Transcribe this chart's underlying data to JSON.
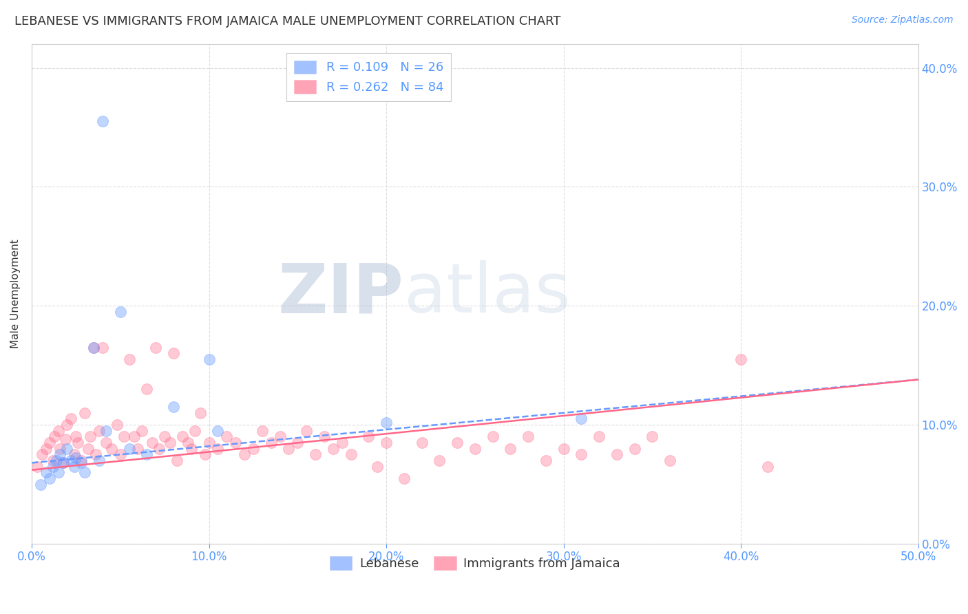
{
  "title": "LEBANESE VS IMMIGRANTS FROM JAMAICA MALE UNEMPLOYMENT CORRELATION CHART",
  "source": "Source: ZipAtlas.com",
  "ylabel": "Male Unemployment",
  "xlim": [
    0.0,
    0.5
  ],
  "ylim": [
    0.0,
    0.42
  ],
  "x_tick_vals": [
    0.0,
    0.1,
    0.2,
    0.3,
    0.4,
    0.5
  ],
  "x_tick_labels": [
    "0.0%",
    "10.0%",
    "20.0%",
    "30.0%",
    "40.0%",
    "50.0%"
  ],
  "y_tick_vals": [
    0.0,
    0.1,
    0.2,
    0.3,
    0.4
  ],
  "y_tick_labels": [
    "0.0%",
    "10.0%",
    "20.0%",
    "30.0%",
    "40.0%"
  ],
  "leb_R": 0.109,
  "leb_N": 26,
  "jam_R": 0.262,
  "jam_N": 84,
  "leb_label": "Lebanese",
  "jam_label": "Immigrants from Jamaica",
  "blue_color": "#6699ff",
  "pink_color": "#ff6688",
  "grid_color": "#dddddd",
  "axis_color": "#cccccc",
  "tick_color": "#5599ff",
  "bg_color": "#ffffff",
  "title_color": "#333333",
  "title_fontsize": 13,
  "source_fontsize": 10,
  "label_fontsize": 11,
  "tick_fontsize": 12,
  "legend_fontsize": 13,
  "watermark_zip": "ZIP",
  "watermark_atlas": "atlas",
  "leb_trend_start_y": 0.068,
  "leb_trend_end_y": 0.138,
  "jam_trend_start_y": 0.062,
  "jam_trend_end_y": 0.138,
  "leb_x": [
    0.005,
    0.008,
    0.01,
    0.012,
    0.014,
    0.015,
    0.016,
    0.018,
    0.02,
    0.022,
    0.024,
    0.025,
    0.028,
    0.03,
    0.035,
    0.038,
    0.04,
    0.042,
    0.05,
    0.055,
    0.065,
    0.08,
    0.1,
    0.105,
    0.2,
    0.31
  ],
  "leb_y": [
    0.05,
    0.06,
    0.055,
    0.065,
    0.07,
    0.06,
    0.075,
    0.068,
    0.08,
    0.07,
    0.065,
    0.072,
    0.068,
    0.06,
    0.165,
    0.07,
    0.355,
    0.095,
    0.195,
    0.08,
    0.075,
    0.115,
    0.155,
    0.095,
    0.102,
    0.105
  ],
  "jam_x": [
    0.003,
    0.006,
    0.008,
    0.01,
    0.012,
    0.013,
    0.015,
    0.016,
    0.018,
    0.019,
    0.02,
    0.022,
    0.024,
    0.025,
    0.026,
    0.028,
    0.03,
    0.032,
    0.033,
    0.035,
    0.036,
    0.038,
    0.04,
    0.042,
    0.045,
    0.048,
    0.05,
    0.052,
    0.055,
    0.058,
    0.06,
    0.062,
    0.065,
    0.068,
    0.07,
    0.072,
    0.075,
    0.078,
    0.08,
    0.082,
    0.085,
    0.088,
    0.09,
    0.092,
    0.095,
    0.098,
    0.1,
    0.105,
    0.11,
    0.115,
    0.12,
    0.125,
    0.13,
    0.135,
    0.14,
    0.145,
    0.15,
    0.155,
    0.16,
    0.165,
    0.17,
    0.175,
    0.18,
    0.19,
    0.195,
    0.2,
    0.21,
    0.22,
    0.23,
    0.24,
    0.25,
    0.26,
    0.27,
    0.28,
    0.29,
    0.3,
    0.31,
    0.32,
    0.33,
    0.34,
    0.35,
    0.36,
    0.4,
    0.415
  ],
  "jam_y": [
    0.065,
    0.075,
    0.08,
    0.085,
    0.07,
    0.09,
    0.095,
    0.08,
    0.068,
    0.088,
    0.1,
    0.105,
    0.075,
    0.09,
    0.085,
    0.07,
    0.11,
    0.08,
    0.09,
    0.165,
    0.075,
    0.095,
    0.165,
    0.085,
    0.08,
    0.1,
    0.075,
    0.09,
    0.155,
    0.09,
    0.08,
    0.095,
    0.13,
    0.085,
    0.165,
    0.08,
    0.09,
    0.085,
    0.16,
    0.07,
    0.09,
    0.085,
    0.08,
    0.095,
    0.11,
    0.075,
    0.085,
    0.08,
    0.09,
    0.085,
    0.075,
    0.08,
    0.095,
    0.085,
    0.09,
    0.08,
    0.085,
    0.095,
    0.075,
    0.09,
    0.08,
    0.085,
    0.075,
    0.09,
    0.065,
    0.085,
    0.055,
    0.085,
    0.07,
    0.085,
    0.08,
    0.09,
    0.08,
    0.09,
    0.07,
    0.08,
    0.075,
    0.09,
    0.075,
    0.08,
    0.09,
    0.07,
    0.155,
    0.065
  ]
}
